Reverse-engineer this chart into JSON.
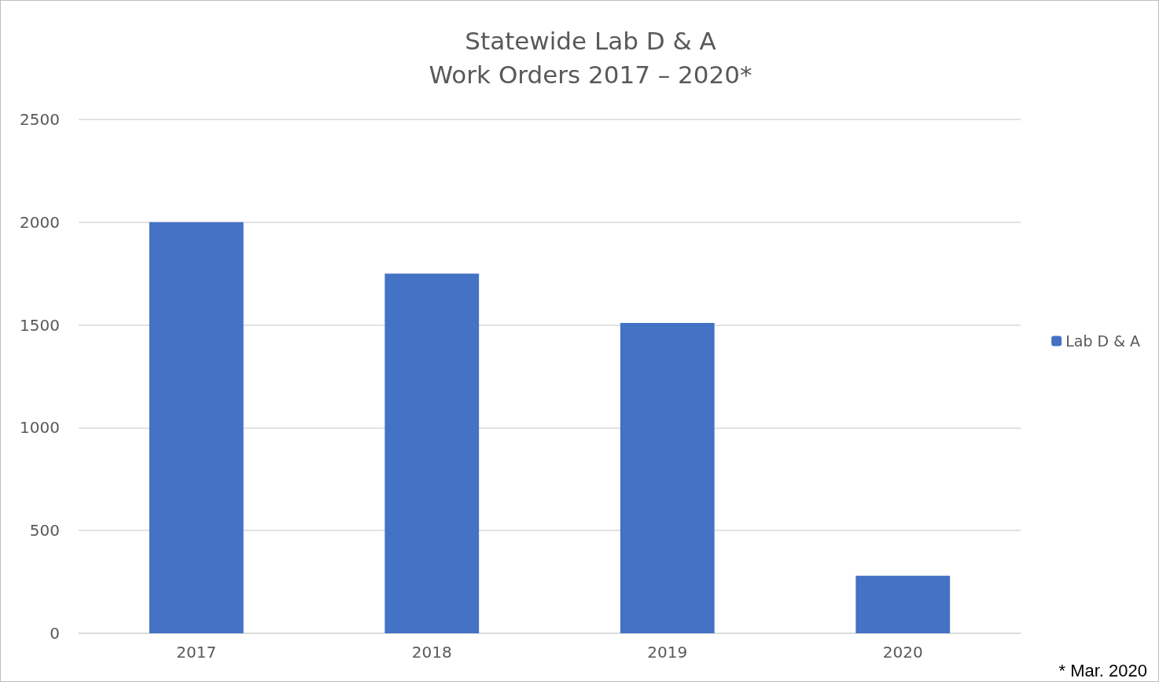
{
  "chart_data": {
    "type": "bar",
    "title": "Statewide Lab D & A",
    "subtitle": "Work Orders 2017 – 2020*",
    "categories": [
      "2017",
      "2018",
      "2019",
      "2020"
    ],
    "series": [
      {
        "name": "Lab D & A",
        "color": "#4472c4",
        "values": [
          2000,
          1750,
          1510,
          280
        ]
      }
    ],
    "ylim": [
      0,
      2500
    ],
    "yticks": [
      0,
      500,
      1000,
      1500,
      2000,
      2500
    ],
    "grid": "y",
    "legend": "right",
    "annotations": [
      "* Mar. 2020"
    ]
  }
}
